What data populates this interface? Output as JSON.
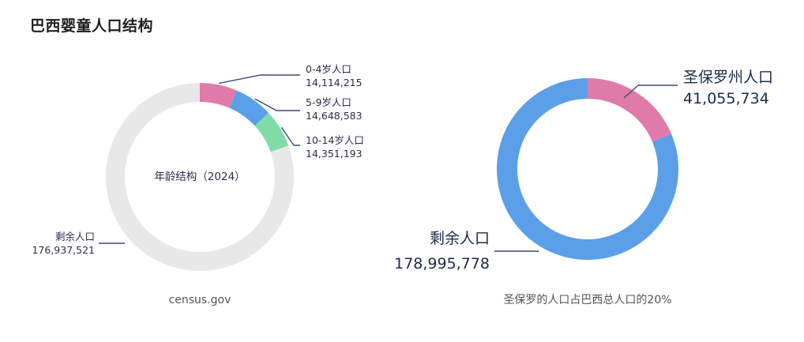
{
  "title": "巴西婴童人口结构",
  "chart_data": [
    {
      "type": "pie",
      "style": "donut",
      "center_label": "年龄结构（2024）",
      "caption": "census.gov",
      "slices": [
        {
          "label": "0-4岁人口",
          "value": 14114215,
          "value_text": "14,114,215",
          "color": "#e07aa8"
        },
        {
          "label": "5-9岁人口",
          "value": 14648583,
          "value_text": "14,648,583",
          "color": "#5b9fe8"
        },
        {
          "label": "10-14岁人口",
          "value": 14351193,
          "value_text": "14,351,193",
          "color": "#7fdca8"
        },
        {
          "label": "剩余人口",
          "value": 176937521,
          "value_text": "176,937,521",
          "color": "#e8e8e8"
        }
      ]
    },
    {
      "type": "pie",
      "style": "donut",
      "caption": "圣保罗的人口占巴西总人口的20%",
      "slices": [
        {
          "label": "圣保罗州人口",
          "value": 41055734,
          "value_text": "41,055,734",
          "color": "#e07aa8"
        },
        {
          "label": "剩余人口",
          "value": 178995778,
          "value_text": "178,995,778",
          "color": "#5b9fe8"
        }
      ]
    }
  ]
}
